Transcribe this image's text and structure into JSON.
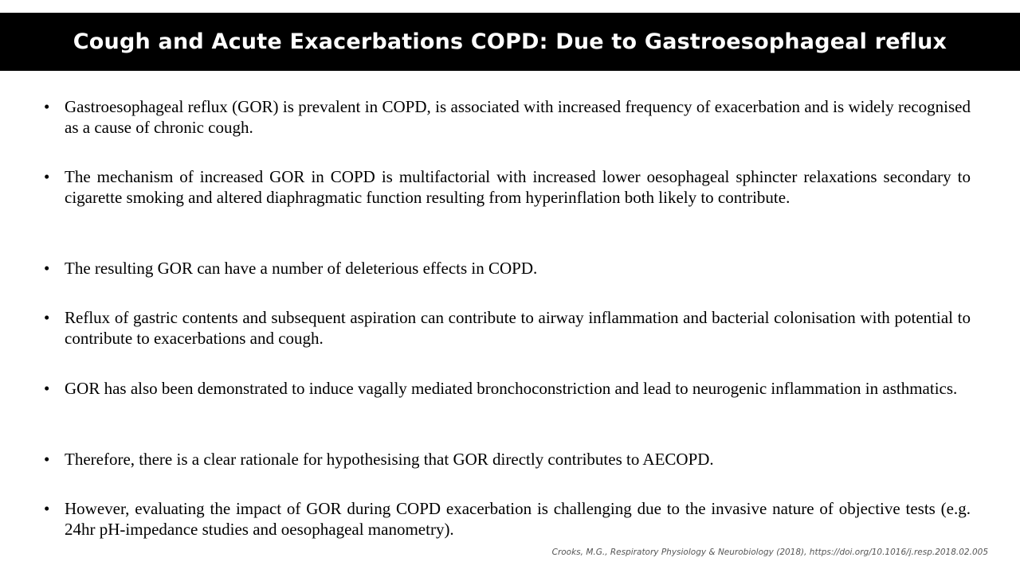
{
  "slide": {
    "title": "Cough and Acute Exacerbations COPD: Due to Gastroesophageal reflux",
    "bullets": [
      "Gastroesophageal reflux (GOR) is prevalent in COPD, is associated with increased frequency of exacerbation and is widely recognised as a cause of chronic cough.",
      "The mechanism of increased GOR in COPD is multifactorial with increased lower oesophageal sphincter relaxations secondary to cigarette smoking and altered diaphragmatic function resulting from hyperinflation both likely to contribute.",
      "The resulting GOR can have a number of deleterious effects in COPD.",
      "Reflux of gastric contents and subsequent aspiration can contribute to airway inflammation and bacterial colonisation with potential to contribute to exacerbations and cough.",
      "GOR has also been demonstrated to induce vagally mediated bronchoconstriction and lead to neurogenic inflammation in asthmatics.",
      "Therefore, there is a clear rationale for hypothesising that GOR directly contributes to AECOPD.",
      "However, evaluating the impact of GOR during COPD exacerbation is challenging due to the invasive nature of objective tests (e.g. 24hr pH-impedance studies and oesophageal manometry)."
    ],
    "bullet_marker": "•",
    "citation": "Crooks, M.G., Respiratory Physiology & Neurobiology (2018), https://doi.org/10.1016/j.resp.2018.02.005"
  },
  "colors": {
    "title_bar_bg": "#000000",
    "title_text": "#ffffff",
    "body_text": "#000000",
    "citation_text": "#555555"
  }
}
